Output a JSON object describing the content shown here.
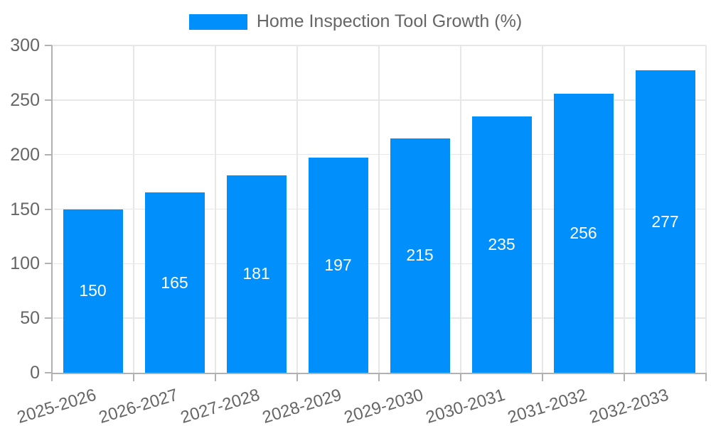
{
  "chart_data": {
    "type": "bar",
    "title": "Home Inspection Tool Growth (%)",
    "categories": [
      "2025-2026",
      "2026-2027",
      "2027-2028",
      "2028-2029",
      "2029-2030",
      "2030-2031",
      "2031-2032",
      "2032-2033"
    ],
    "values": [
      150,
      165,
      181,
      197,
      215,
      235,
      256,
      277
    ],
    "xlabel": "",
    "ylabel": "",
    "ylim": [
      0,
      300
    ],
    "yticks": [
      0,
      50,
      100,
      150,
      200,
      250,
      300
    ],
    "grid": true,
    "legend_position": "top",
    "colors": {
      "bar": "#008FFB",
      "bar_label_text": "#ffffff",
      "axis_text": "#666666",
      "gridline": "#e7e7e7",
      "axis_line": "#b1b1b1"
    }
  }
}
